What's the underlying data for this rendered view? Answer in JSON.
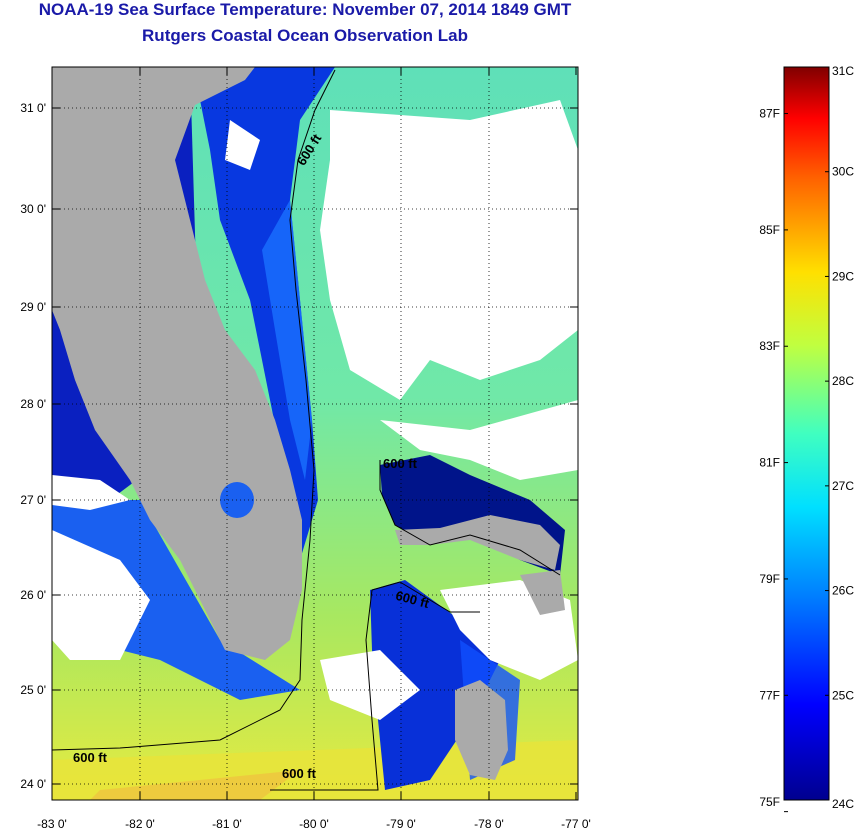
{
  "header": {
    "title": "NOAA-19 Sea Surface Temperature:  November 07, 2014 1849 GMT",
    "subtitle": "Rutgers Coastal Ocean Observation Lab"
  },
  "map": {
    "lon_ticks": [
      "-83 0'",
      "-82 0'",
      "-81 0'",
      "-80 0'",
      "-79 0'",
      "-78 0'",
      "-77 0'"
    ],
    "lat_ticks": [
      "31 0'",
      "30 0'",
      "29 0'",
      "28 0'",
      "27 0'",
      "26 0'",
      "25 0'",
      "24 0'"
    ],
    "contour_label": "600 ft",
    "colors": {
      "land": "#aaaaaa",
      "cloud": "#ffffff",
      "contour": "#000000"
    }
  },
  "colorbar": {
    "celsius": [
      "31C",
      "30C",
      "29C",
      "28C",
      "27C",
      "26C",
      "25C",
      "24C"
    ],
    "fahrenheit": [
      "87F",
      "85F",
      "83F",
      "81F",
      "79F",
      "77F",
      "75F"
    ],
    "range_c": [
      24,
      31
    ]
  }
}
